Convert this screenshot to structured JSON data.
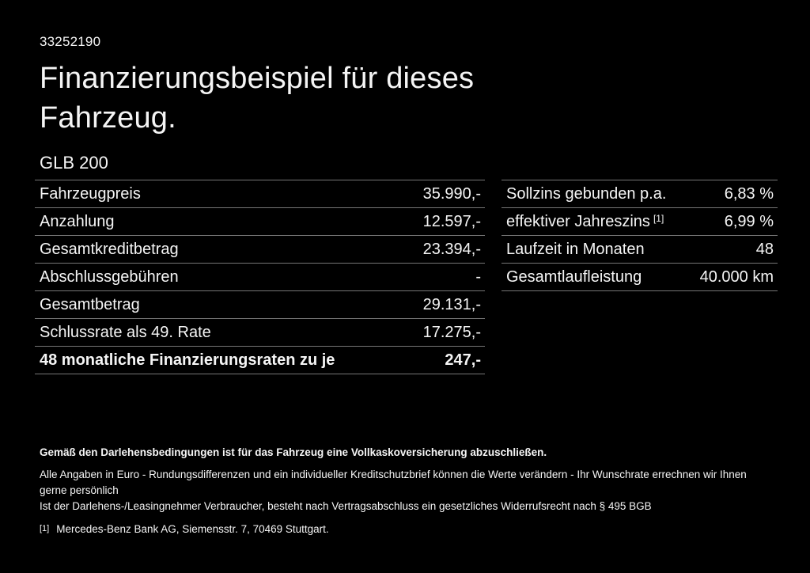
{
  "page": {
    "ref_number": "33252190",
    "title_lines": [
      "Finanzierungsbeispiel für dieses",
      "Fahrzeug."
    ],
    "model": "GLB 200"
  },
  "finance_table": {
    "rows": [
      {
        "label": "Fahrzeugpreis",
        "value": "35.990,-"
      },
      {
        "label": "Anzahlung",
        "value": "12.597,-"
      },
      {
        "label": "Gesamtkreditbetrag",
        "value": "23.394,-"
      },
      {
        "label": "Abschlussgebühren",
        "value": "-"
      },
      {
        "label": "Gesamtbetrag",
        "value": "29.131,-"
      },
      {
        "label": "Schlussrate als 49. Rate",
        "value": "17.275,-"
      },
      {
        "label": "48 monatliche Finanzierungsraten zu je",
        "value": "247,-",
        "bold": true
      }
    ]
  },
  "conditions_table": {
    "rows": [
      {
        "label": "Sollzins gebunden p.a.",
        "value": "6,83 %"
      },
      {
        "label": "effektiver Jahreszins",
        "label_sup": "[1]",
        "value": "6,99 %"
      },
      {
        "label": "Laufzeit in Monaten",
        "value": "48"
      },
      {
        "label": "Gesamtlaufleistung",
        "value": "40.000 km"
      }
    ]
  },
  "footer": {
    "bold_note": "Gemäß den Darlehensbedingungen ist für das Fahrzeug eine Vollkaskoversicherung abzuschließen.",
    "note_line1": "Alle Angaben in Euro - Rundungsdifferenzen und ein individueller Kreditschutzbrief können die Werte verändern - Ihr Wunschrate errechnen wir Ihnen gerne persönlich",
    "note_line2": "Ist der Darlehens-/Leasingnehmer Verbraucher, besteht nach Vertragsabschluss ein gesetzliches Widerrufsrecht nach § 495 BGB",
    "footnote_marker": "[1]",
    "footnote_text": "Mercedes-Benz Bank AG, Siemensstr. 7, 70469 Stuttgart."
  },
  "colors": {
    "background": "#000000",
    "text": "#f5f5f5",
    "divider": "#767676"
  }
}
